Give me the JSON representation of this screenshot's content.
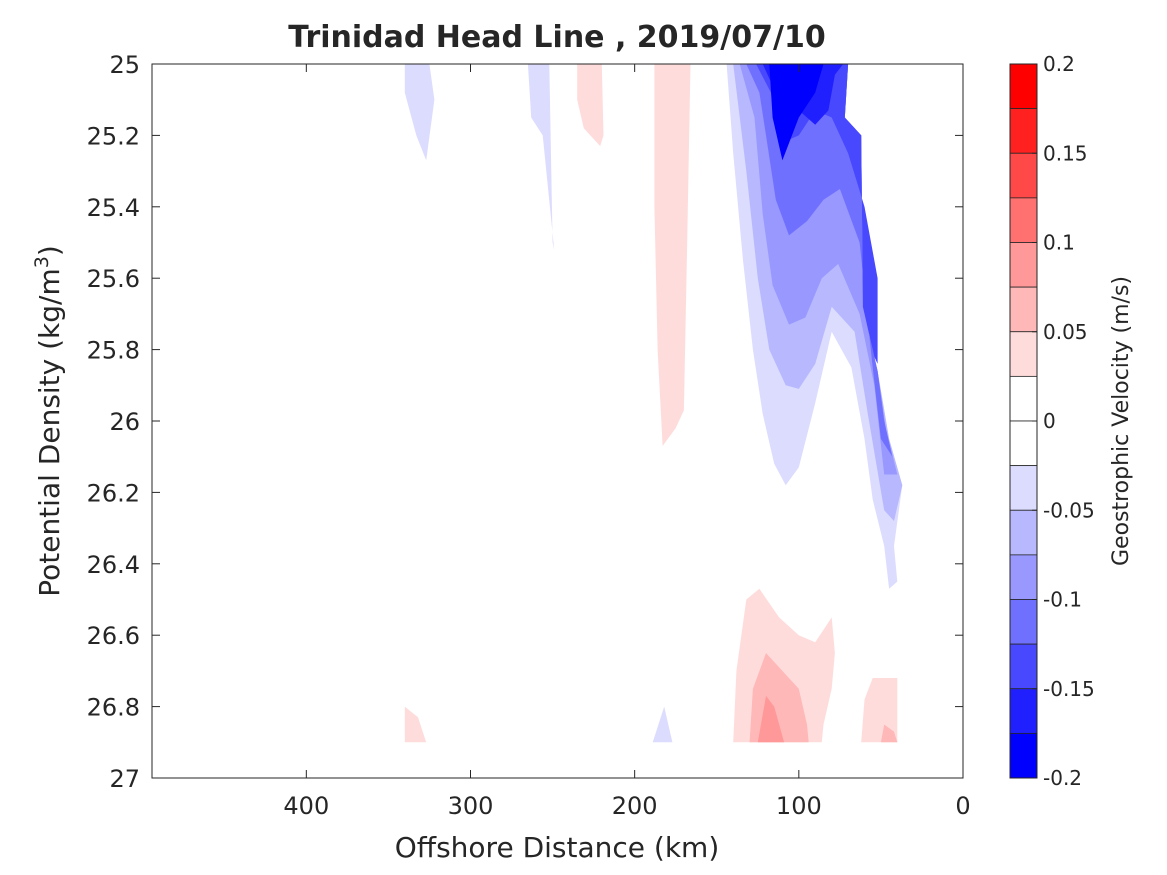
{
  "chart_data": {
    "type": "contour",
    "title": "Trinidad Head Line , 2019/07/10",
    "xlabel": "Offshore Distance (km)",
    "ylabel_main": "Potential Density (kg/m",
    "ylabel_sup": "3",
    "ylabel_end": ")",
    "colorbar_label": "Geostrophic Velocity (m/s)",
    "x_ticks": [
      "400",
      "300",
      "200",
      "100",
      "0"
    ],
    "y_ticks": [
      "25",
      "25.2",
      "25.4",
      "25.6",
      "25.8",
      "26",
      "26.2",
      "26.4",
      "26.6",
      "26.8",
      "27"
    ],
    "colorbar_ticks": [
      "0.2",
      "0.15",
      "0.1",
      "0.05",
      "0",
      "-0.05",
      "-0.1",
      "-0.15",
      "-0.2"
    ],
    "xlim": [
      494,
      0
    ],
    "ylim": [
      25,
      27
    ],
    "x_reversed": true,
    "y_reversed": true,
    "clim": [
      -0.2,
      0.2
    ],
    "level_step": 0.025,
    "colors": {
      "0.175": "#ff0000",
      "0.15": "#ff2020",
      "0.125": "#ff4848",
      "0.1": "#ff7070",
      "0.075": "#ff9898",
      "0.05": "#ffb8b8",
      "0.025": "#ffdcdc",
      "0": "#ffffff",
      "-0.025": "#dcdcff",
      "-0.05": "#b8b8ff",
      "-0.075": "#9898ff",
      "-0.1": "#7070ff",
      "-0.125": "#4848ff",
      "-0.15": "#2020ff",
      "-0.175": "#0000ff"
    },
    "regions": [
      {
        "level": -0.025,
        "points": [
          [
            340,
            25
          ],
          [
            325,
            25
          ],
          [
            322,
            25.1
          ],
          [
            327,
            25.27
          ],
          [
            333,
            25.2
          ],
          [
            340,
            25.08
          ]
        ]
      },
      {
        "level": -0.025,
        "points": [
          [
            265,
            25
          ],
          [
            252,
            25
          ],
          [
            250,
            25.5
          ],
          [
            249,
            25.52
          ],
          [
            256,
            25.2
          ],
          [
            263,
            25.15
          ]
        ]
      },
      {
        "level": 0.025,
        "points": [
          [
            235,
            25
          ],
          [
            220,
            25
          ],
          [
            219,
            25.2
          ],
          [
            221,
            25.23
          ],
          [
            231,
            25.18
          ],
          [
            235,
            25.1
          ]
        ]
      },
      {
        "level": 0.025,
        "points": [
          [
            188,
            25
          ],
          [
            166,
            25
          ],
          [
            168,
            25.5
          ],
          [
            170,
            25.97
          ],
          [
            175,
            26.02
          ],
          [
            183,
            26.07
          ],
          [
            186,
            25.8
          ],
          [
            188,
            25.4
          ]
        ]
      },
      {
        "level": -0.025,
        "points": [
          [
            144,
            25
          ],
          [
            70,
            25
          ],
          [
            72,
            25.15
          ],
          [
            62,
            25.2
          ],
          [
            61,
            25.68
          ],
          [
            52,
            25.86
          ],
          [
            45,
            26.05
          ],
          [
            37,
            26.18
          ],
          [
            42,
            26.35
          ],
          [
            40,
            26.45
          ],
          [
            45,
            26.47
          ],
          [
            48,
            26.35
          ],
          [
            55,
            26.22
          ],
          [
            60,
            26.05
          ],
          [
            68,
            25.85
          ],
          [
            80,
            25.75
          ],
          [
            90,
            25.95
          ],
          [
            100,
            26.13
          ],
          [
            108,
            26.18
          ],
          [
            115,
            26.12
          ],
          [
            122,
            25.98
          ],
          [
            128,
            25.8
          ],
          [
            134,
            25.55
          ],
          [
            140,
            25.25
          ]
        ]
      },
      {
        "level": -0.05,
        "points": [
          [
            140,
            25
          ],
          [
            70,
            25
          ],
          [
            72,
            25.15
          ],
          [
            62,
            25.2
          ],
          [
            61,
            25.68
          ],
          [
            52,
            25.86
          ],
          [
            45,
            26.05
          ],
          [
            37,
            26.18
          ],
          [
            42,
            26.28
          ],
          [
            48,
            26.25
          ],
          [
            58,
            25.98
          ],
          [
            66,
            25.75
          ],
          [
            80,
            25.68
          ],
          [
            90,
            25.84
          ],
          [
            100,
            25.91
          ],
          [
            108,
            25.9
          ],
          [
            118,
            25.8
          ],
          [
            125,
            25.6
          ],
          [
            132,
            25.3
          ]
        ]
      },
      {
        "level": -0.075,
        "points": [
          [
            136,
            25
          ],
          [
            70,
            25
          ],
          [
            72,
            25.15
          ],
          [
            62,
            25.2
          ],
          [
            61,
            25.68
          ],
          [
            52,
            25.86
          ],
          [
            47,
            26.02
          ],
          [
            40,
            26.15
          ],
          [
            48,
            26.15
          ],
          [
            54,
            25.9
          ],
          [
            63,
            25.7
          ],
          [
            76,
            25.56
          ],
          [
            86,
            25.6
          ],
          [
            96,
            25.71
          ],
          [
            106,
            25.73
          ],
          [
            116,
            25.62
          ],
          [
            122,
            25.42
          ],
          [
            127,
            25.15
          ]
        ]
      },
      {
        "level": -0.1,
        "points": [
          [
            132,
            25
          ],
          [
            70,
            25
          ],
          [
            72,
            25.15
          ],
          [
            62,
            25.2
          ],
          [
            61,
            25.68
          ],
          [
            52,
            25.86
          ],
          [
            48,
            26.0
          ],
          [
            43,
            26.1
          ],
          [
            50,
            26.05
          ],
          [
            55,
            25.85
          ],
          [
            63,
            25.5
          ],
          [
            75,
            25.35
          ],
          [
            85,
            25.38
          ],
          [
            95,
            25.44
          ],
          [
            106,
            25.48
          ],
          [
            114,
            25.38
          ],
          [
            120,
            25.2
          ],
          [
            124,
            25.08
          ]
        ]
      },
      {
        "level": -0.125,
        "points": [
          [
            126,
            25
          ],
          [
            70,
            25
          ],
          [
            72,
            25.15
          ],
          [
            62,
            25.2
          ],
          [
            61,
            25.68
          ],
          [
            54,
            25.82
          ],
          [
            52,
            25.84
          ],
          [
            52,
            25.6
          ],
          [
            60,
            25.4
          ],
          [
            70,
            25.25
          ],
          [
            80,
            25.15
          ],
          [
            90,
            25.13
          ],
          [
            100,
            25.2
          ],
          [
            110,
            25.22
          ],
          [
            117,
            25.08
          ]
        ]
      },
      {
        "level": -0.15,
        "points": [
          [
            122,
            25
          ],
          [
            73,
            25
          ],
          [
            78,
            25.03
          ],
          [
            82,
            25.13
          ],
          [
            90,
            25.17
          ],
          [
            100,
            25.13
          ],
          [
            112,
            25.1
          ]
        ]
      },
      {
        "level": -0.175,
        "points": [
          [
            118,
            25
          ],
          [
            85,
            25
          ],
          [
            90,
            25.08
          ],
          [
            100,
            25.15
          ],
          [
            110,
            25.27
          ],
          [
            116,
            25.15
          ]
        ]
      },
      {
        "level": 0.025,
        "points": [
          [
            140,
            26.9
          ],
          [
            138,
            26.7
          ],
          [
            132,
            26.5
          ],
          [
            124,
            26.47
          ],
          [
            112,
            26.55
          ],
          [
            100,
            26.6
          ],
          [
            90,
            26.62
          ],
          [
            80,
            26.55
          ],
          [
            78,
            26.65
          ],
          [
            80,
            26.75
          ],
          [
            85,
            26.85
          ],
          [
            86,
            26.9
          ]
        ]
      },
      {
        "level": 0.05,
        "points": [
          [
            130,
            26.9
          ],
          [
            128,
            26.75
          ],
          [
            120,
            26.65
          ],
          [
            110,
            26.7
          ],
          [
            100,
            26.75
          ],
          [
            95,
            26.85
          ],
          [
            94,
            26.9
          ]
        ]
      },
      {
        "level": 0.075,
        "points": [
          [
            125,
            26.9
          ],
          [
            120,
            26.77
          ],
          [
            115,
            26.8
          ],
          [
            109,
            26.9
          ]
        ]
      },
      {
        "level": 0.025,
        "points": [
          [
            62,
            26.9
          ],
          [
            60,
            26.78
          ],
          [
            55,
            26.72
          ],
          [
            45,
            26.72
          ],
          [
            40,
            26.72
          ],
          [
            40,
            26.9
          ]
        ]
      },
      {
        "level": 0.05,
        "points": [
          [
            50,
            26.9
          ],
          [
            48,
            26.85
          ],
          [
            42,
            26.87
          ],
          [
            40,
            26.9
          ]
        ]
      },
      {
        "level": 0.025,
        "points": [
          [
            340,
            26.9
          ],
          [
            340,
            26.8
          ],
          [
            332,
            26.83
          ],
          [
            327,
            26.9
          ]
        ]
      },
      {
        "level": -0.025,
        "points": [
          [
            189,
            26.9
          ],
          [
            182,
            26.8
          ],
          [
            177,
            26.9
          ]
        ]
      }
    ]
  }
}
